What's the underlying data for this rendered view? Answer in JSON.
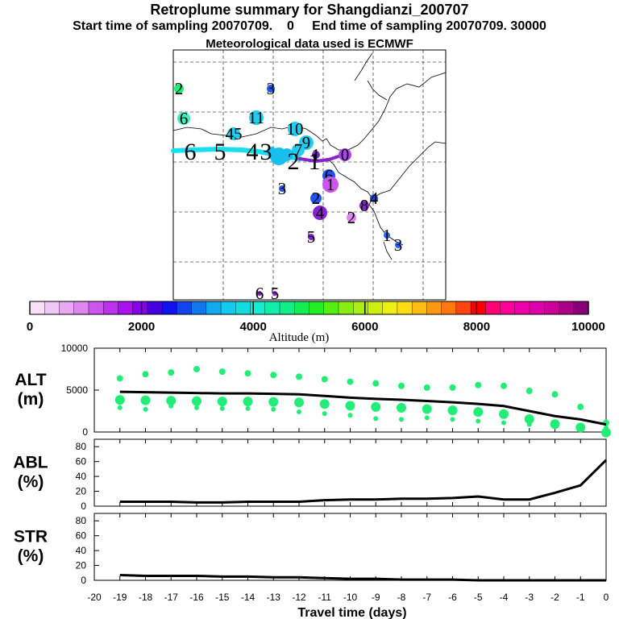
{
  "title": "Retroplume summary for Shangdianzi_200707",
  "subtitle": "Start time of sampling 20070709.    0     End time of sampling 20070709. 30000",
  "met_line": "Meteorological data used is ECMWF",
  "colors": {
    "plume_line": "#18dff0",
    "marker_alt": "#22ee77",
    "purple_line": "#8822cc",
    "line_black": "#000000"
  },
  "chart_data": [
    {
      "type": "map",
      "name": "retroplume-map",
      "clusters": [
        {
          "label": "2",
          "color": "#22ee77"
        },
        {
          "label": "3",
          "color": "#2255ee"
        },
        {
          "label": "6",
          "color": "#44eebb"
        },
        {
          "label": "11",
          "color": "#22ccee"
        },
        {
          "label": "45",
          "color": "#22ccee"
        },
        {
          "label": "10",
          "color": "#22ccee"
        },
        {
          "label": "9",
          "color": "#22ccee"
        },
        {
          "label": "7",
          "color": "#22ccee"
        },
        {
          "label": "1",
          "color": "#7a22dd"
        },
        {
          "label": "0",
          "color": "#aa44ee"
        },
        {
          "label": "6",
          "color": "#2255ee"
        },
        {
          "label": "1",
          "color": "#cc55ee"
        },
        {
          "label": "3",
          "color": "#2255ee"
        },
        {
          "label": "2",
          "color": "#2255ee"
        },
        {
          "label": "4",
          "color": "#2244dd"
        },
        {
          "label": "8",
          "color": "#8822cc"
        },
        {
          "label": "2",
          "color": "#dd88ee"
        },
        {
          "label": "4",
          "color": "#8822cc"
        },
        {
          "label": "5",
          "color": "#8822cc"
        },
        {
          "label": "1",
          "color": "#2266ff"
        },
        {
          "label": "3",
          "color": "#2266ff"
        },
        {
          "label": "6",
          "color": "#8822cc"
        },
        {
          "label": "5",
          "color": "#8822cc"
        }
      ],
      "day_labels": [
        "6",
        "5",
        "4",
        "3",
        "2",
        "1"
      ]
    },
    {
      "type": "colorbar",
      "xlabel": "Altitude (m)",
      "range": [
        0,
        10000
      ],
      "ticks": [
        0,
        2000,
        4000,
        6000,
        8000,
        10000
      ],
      "tick_labels": [
        "0",
        "2000",
        "4000",
        "6000",
        "8000",
        "10000"
      ],
      "colors": [
        "#f8e0f8",
        "#f0c8f8",
        "#e8a8f4",
        "#dd88f0",
        "#cc55ee",
        "#bb33ee",
        "#aa11ee",
        "#8800ee",
        "#4400dd",
        "#1111ee",
        "#1144ee",
        "#1177ee",
        "#11aaee",
        "#11ccee",
        "#11dddd",
        "#11eecc",
        "#11eeaa",
        "#11ee88",
        "#11ee55",
        "#22ee22",
        "#55ee11",
        "#88ee11",
        "#aaee11",
        "#ccee11",
        "#eeee11",
        "#ffdd11",
        "#ffbb11",
        "#ff9911",
        "#ff7711",
        "#ff4411",
        "#ff0000",
        "#ff0077",
        "#ff0099",
        "#ee00aa",
        "#dd00aa",
        "#cc0099",
        "#aa0088",
        "#880077"
      ]
    },
    {
      "type": "line",
      "name": "ALT",
      "ylabel": "ALT\n(m)",
      "ylabel_lines": [
        "ALT",
        "(m)"
      ],
      "ylim": [
        0,
        10000
      ],
      "ytick_labels": [
        "10000",
        "5000",
        "0"
      ],
      "x": [
        -19,
        -18,
        -17,
        -16,
        -15,
        -14,
        -13,
        -12,
        -11,
        -10,
        -9,
        -8,
        -7,
        -6,
        -5,
        -4,
        -3,
        -2,
        -1,
        0
      ],
      "mean": [
        4800,
        4750,
        4700,
        4650,
        4600,
        4600,
        4550,
        4500,
        4300,
        4100,
        3950,
        3850,
        3700,
        3550,
        3350,
        3100,
        2500,
        1900,
        1500,
        900
      ],
      "upper": [
        6400,
        6900,
        7100,
        7500,
        7200,
        7000,
        6800,
        6600,
        6300,
        6000,
        5800,
        5500,
        5300,
        5300,
        5600,
        5500,
        4900,
        4500,
        3000,
        1100
      ],
      "lower": [
        2900,
        2700,
        3100,
        2900,
        2800,
        2800,
        2700,
        2400,
        2200,
        2000,
        1600,
        1500,
        1700,
        1500,
        1300,
        1100,
        900,
        700,
        600,
        500
      ]
    },
    {
      "type": "line",
      "name": "ABL",
      "ylabel": "ABL\n(%)",
      "ylabel_lines": [
        "ABL",
        "(%)"
      ],
      "ylim": [
        0,
        90
      ],
      "ytick_labels": [
        "80",
        "60",
        "40",
        "20",
        "0"
      ],
      "x": [
        -19,
        -18,
        -17,
        -16,
        -15,
        -14,
        -13,
        -12,
        -11,
        -10,
        -9,
        -8,
        -7,
        -6,
        -5,
        -4,
        -3,
        -2,
        -1,
        0
      ],
      "values": [
        6,
        6,
        6,
        5,
        5,
        6,
        6,
        6,
        8,
        9,
        9,
        10,
        10,
        11,
        13,
        9,
        9,
        18,
        28,
        62
      ]
    },
    {
      "type": "line",
      "name": "STR",
      "ylabel": "STR\n(%)",
      "ylabel_lines": [
        "STR",
        "(%)"
      ],
      "ylim": [
        0,
        90
      ],
      "ytick_labels": [
        "80",
        "60",
        "40",
        "20",
        "0"
      ],
      "x": [
        -19,
        -18,
        -17,
        -16,
        -15,
        -14,
        -13,
        -12,
        -11,
        -10,
        -9,
        -8,
        -7,
        -6,
        -5,
        -4,
        -3,
        -2,
        -1,
        0
      ],
      "values": [
        7,
        6,
        6,
        6,
        5,
        5,
        4,
        4,
        3,
        2,
        2,
        1,
        1,
        1,
        0,
        0,
        0,
        0,
        0,
        0
      ],
      "xlabel": "Travel time (days)",
      "xtick_labels": [
        "-20",
        "-19",
        "-18",
        "-17",
        "-16",
        "-15",
        "-14",
        "-13",
        "-12",
        "-11",
        "-10",
        "-9",
        "-8",
        "-7",
        "-6",
        "-5",
        "-4",
        "-3",
        "-2",
        "-1",
        "0"
      ]
    }
  ]
}
